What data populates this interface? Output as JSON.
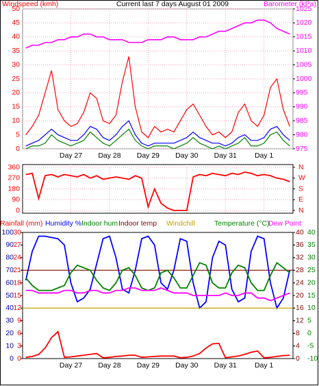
{
  "chart_data": [
    {
      "type": "line",
      "title": "Current last 7 days August 01 2009",
      "y_label": "Windspeed (kmh)",
      "y2_label": "Barometer (kPa)",
      "y_label_color": "#ff0000",
      "y2_label_color": "#ff00ff",
      "grid": true,
      "categories": [
        null,
        null,
        null,
        null,
        null,
        null,
        null,
        "Day 27",
        null,
        null,
        null,
        null,
        null,
        "Day 28",
        null,
        null,
        null,
        null,
        null,
        "Day 29",
        null,
        null,
        null,
        null,
        null,
        "Day 30",
        null,
        null,
        null,
        null,
        null,
        "Day 31",
        null,
        null,
        null,
        null,
        null,
        "Day 1",
        null,
        null,
        null,
        null
      ],
      "ylim": [
        0,
        50
      ],
      "yticks": [
        0,
        5,
        10,
        15,
        20,
        25,
        30,
        35,
        40,
        45,
        50
      ],
      "y2lim": [
        975,
        1025
      ],
      "y2ticks": [
        975,
        980,
        985,
        990,
        995,
        1000,
        1005,
        1010,
        1015,
        1020,
        1025
      ],
      "series": [
        {
          "color": "#ff0000",
          "values": [
            5,
            8,
            12,
            20,
            28,
            14,
            10,
            8,
            9,
            13,
            20,
            18,
            10,
            9,
            12,
            24,
            33,
            15,
            6,
            4,
            8,
            6,
            7,
            6,
            10,
            14,
            16,
            12,
            8,
            5,
            6,
            4,
            6,
            13,
            16,
            10,
            8,
            12,
            22,
            25,
            14,
            8
          ]
        },
        {
          "color": "#0000ff",
          "values": [
            1,
            2,
            3,
            5,
            7,
            5,
            4,
            3,
            3,
            5,
            8,
            7,
            4,
            3,
            5,
            8,
            10,
            5,
            2,
            1,
            2,
            2,
            2,
            2,
            3,
            4,
            6,
            4,
            3,
            2,
            2,
            1,
            2,
            4,
            5,
            3,
            3,
            4,
            7,
            8,
            5,
            3
          ]
        },
        {
          "color": "#008000",
          "values": [
            0,
            1,
            1,
            2,
            5,
            3,
            2,
            1,
            2,
            3,
            6,
            4,
            2,
            1,
            3,
            5,
            7,
            3,
            1,
            0,
            1,
            1,
            1,
            0,
            1,
            2,
            4,
            2,
            1,
            0,
            1,
            0,
            1,
            2,
            4,
            1,
            1,
            2,
            5,
            6,
            3,
            1
          ]
        },
        {
          "color": "#ff00ff",
          "axis": "y2",
          "values": [
            1011,
            1012,
            1012,
            1013,
            1013,
            1014,
            1014,
            1015,
            1015,
            1016,
            1016,
            1015,
            1015,
            1014,
            1014,
            1014,
            1013,
            1013,
            1013,
            1014,
            1014,
            1014,
            1015,
            1015,
            1014,
            1014,
            1014,
            1015,
            1015,
            1016,
            1017,
            1017,
            1018,
            1019,
            1020,
            1020,
            1021,
            1021,
            1020,
            1018,
            1017,
            1016
          ]
        }
      ]
    },
    {
      "type": "line",
      "grid": true,
      "ylim": [
        0,
        360
      ],
      "yticks": [
        0,
        90,
        180,
        270,
        360
      ],
      "y2lim": [
        0,
        360
      ],
      "y2ticks": [
        {
          "value": 0,
          "label": "N"
        },
        {
          "value": 90,
          "label": "E"
        },
        {
          "value": 180,
          "label": "S"
        },
        {
          "value": 270,
          "label": "W"
        },
        {
          "value": 360,
          "label": "N"
        }
      ],
      "tick_color": "#ff0000",
      "series": [
        {
          "color": "#ff0000",
          "values": [
            300,
            310,
            100,
            290,
            300,
            280,
            300,
            290,
            280,
            300,
            270,
            290,
            260,
            270,
            280,
            270,
            260,
            290,
            270,
            30,
            180,
            60,
            20,
            0,
            0,
            0,
            280,
            300,
            290,
            310,
            300,
            290,
            310,
            300,
            320,
            310,
            290,
            300,
            290,
            270,
            260,
            240
          ]
        }
      ]
    },
    {
      "type": "line",
      "grid": false,
      "categories": [
        null,
        null,
        null,
        null,
        null,
        null,
        null,
        "Day 27",
        null,
        null,
        null,
        null,
        null,
        "Day 28",
        null,
        null,
        null,
        null,
        null,
        "Day 29",
        null,
        null,
        null,
        null,
        null,
        "Day 30",
        null,
        null,
        null,
        null,
        null,
        "Day 31",
        null,
        null,
        null,
        null,
        null,
        "Day 1",
        null,
        null,
        null,
        null
      ],
      "ylim": [
        0,
        30
      ],
      "yticks": [
        0,
        3,
        6,
        9,
        12,
        15,
        18,
        21,
        24,
        27,
        30
      ],
      "humlim": [
        0,
        100
      ],
      "humticks": [
        0,
        10,
        20,
        30,
        40,
        50,
        60,
        70,
        80,
        90,
        100
      ],
      "y2lim": [
        0,
        40
      ],
      "y2ticks": [
        0,
        4,
        8,
        12,
        16,
        20,
        24,
        28,
        32,
        36,
        40
      ],
      "y3lim": [
        -10,
        40
      ],
      "y3ticks": [
        -10,
        -5,
        0,
        5,
        10,
        15,
        20,
        25,
        30,
        35,
        40
      ],
      "series": [
        {
          "name": "Rainfall (mm)",
          "color": "#ff0000",
          "axis": "y",
          "values": [
            0.3,
            0.5,
            1,
            2.5,
            5,
            6.4,
            0.3,
            0.4,
            0.6,
            0.8,
            1,
            1.2,
            0.2,
            0.3,
            0.5,
            0.6,
            0.8,
            0.8,
            0.3,
            0.4,
            0.5,
            0.6,
            0.6,
            0.6,
            0.2,
            0.3,
            0.6,
            1.2,
            2.5,
            3.5,
            3.6,
            0.2,
            0.4,
            0.6,
            1,
            1.5,
            1.8,
            0.2,
            0.3,
            0.5,
            0.7,
            0.8
          ]
        },
        {
          "name": "Humidity %",
          "color": "#0000ff",
          "axis": "hum",
          "values": [
            62,
            85,
            97,
            97,
            96,
            95,
            90,
            60,
            45,
            48,
            55,
            75,
            95,
            97,
            80,
            55,
            52,
            70,
            95,
            97,
            90,
            60,
            55,
            70,
            95,
            93,
            60,
            40,
            45,
            80,
            93,
            90,
            55,
            45,
            48,
            85,
            97,
            95,
            60,
            40,
            48,
            70
          ]
        },
        {
          "name": "Indoor hum",
          "color": "#008000"
        },
        {
          "name": "Indoor temp",
          "color": "#800000",
          "axis": "y2",
          "value": 28
        },
        {
          "name": "Windchill",
          "color": "#c0a000",
          "axis": "y2",
          "value": 16
        },
        {
          "name": "Temperature (°C)",
          "color": "#008000",
          "axis": "y3",
          "values": [
            22,
            19,
            17,
            17,
            17,
            18,
            19,
            24,
            27,
            26,
            25,
            21,
            18,
            17,
            20,
            25,
            26,
            23,
            18,
            17,
            18,
            24,
            25,
            22,
            18,
            18,
            23,
            28,
            27,
            20,
            18,
            18,
            24,
            27,
            26,
            20,
            17,
            17,
            23,
            28,
            26,
            24
          ]
        },
        {
          "name": "Dew Point",
          "color": "#ff00ff",
          "axis": "y3",
          "values": [
            17,
            17,
            16,
            16,
            16,
            16,
            17,
            17,
            16,
            16,
            17,
            17,
            16,
            16,
            17,
            17,
            18,
            18,
            17,
            17,
            17,
            18,
            17,
            16,
            16,
            16,
            15,
            15,
            15,
            15,
            15,
            16,
            15,
            15,
            16,
            16,
            14,
            14,
            13,
            14,
            15,
            16
          ]
        }
      ]
    }
  ]
}
